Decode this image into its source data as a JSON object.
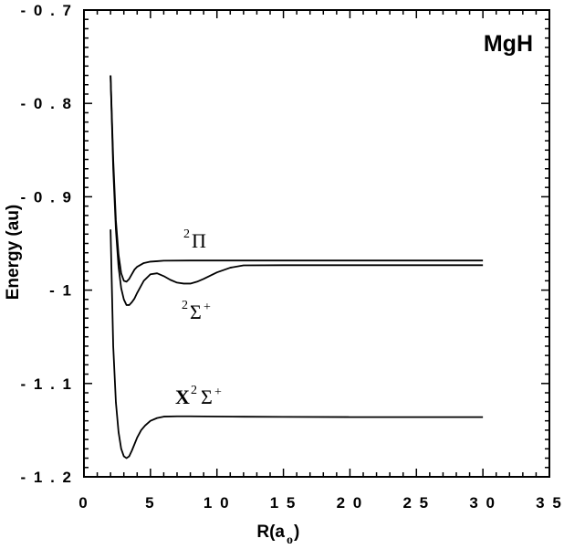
{
  "chart_data": {
    "type": "line",
    "title": "MgH",
    "xlabel": "R(a",
    "xlabel_sub": "o",
    "xlabel_close": ")",
    "ylabel": "Energy  (au)",
    "xlim": [
      0,
      35
    ],
    "ylim": [
      -1.2,
      -0.7
    ],
    "xticks": [
      0,
      5,
      10,
      15,
      20,
      25,
      30,
      35
    ],
    "xtick_labels": [
      "0",
      "5",
      "1 0",
      "1 5",
      "2 0",
      "2 5",
      "3 0",
      "3 5"
    ],
    "yticks": [
      -0.7,
      -0.8,
      -0.9,
      -1.0,
      -1.1,
      -1.2
    ],
    "ytick_labels": [
      "- 0 . 7",
      "- 0 . 8",
      "- 0 . 9",
      "- 1",
      "- 1 . 1",
      "- 1 . 2"
    ],
    "grid": false,
    "series": [
      {
        "name": "X²Σ⁺",
        "x": [
          2.0,
          2.2,
          2.4,
          2.6,
          2.8,
          3.0,
          3.2,
          3.4,
          3.6,
          3.8,
          4.0,
          4.3,
          4.6,
          5.0,
          5.5,
          6.0,
          7.0,
          8.0,
          10.0,
          12.0,
          15.0,
          20.0,
          25.0,
          30.0
        ],
        "y": [
          -0.935,
          -1.06,
          -1.12,
          -1.152,
          -1.17,
          -1.178,
          -1.18,
          -1.178,
          -1.172,
          -1.165,
          -1.158,
          -1.15,
          -1.145,
          -1.14,
          -1.137,
          -1.1355,
          -1.1352,
          -1.1352,
          -1.1354,
          -1.1356,
          -1.1358,
          -1.136,
          -1.136,
          -1.136
        ]
      },
      {
        "name": "²Π",
        "x": [
          2.0,
          2.2,
          2.4,
          2.6,
          2.8,
          3.0,
          3.2,
          3.4,
          3.6,
          3.8,
          4.0,
          4.5,
          5.0,
          5.5,
          6.0,
          8.0,
          10.0,
          15.0,
          20.0,
          25.0,
          30.0
        ],
        "y": [
          -0.77,
          -0.86,
          -0.925,
          -0.962,
          -0.982,
          -0.99,
          -0.991,
          -0.988,
          -0.983,
          -0.978,
          -0.975,
          -0.971,
          -0.9695,
          -0.969,
          -0.9685,
          -0.9683,
          -0.9683,
          -0.9683,
          -0.9683,
          -0.9683,
          -0.9683
        ]
      },
      {
        "name": "²Σ⁺",
        "x": [
          2.0,
          2.2,
          2.4,
          2.6,
          2.8,
          3.0,
          3.2,
          3.4,
          3.6,
          3.8,
          4.0,
          4.5,
          5.0,
          5.5,
          6.0,
          6.5,
          7.0,
          7.5,
          8.0,
          8.5,
          9.0,
          10.0,
          11.0,
          12.0,
          15.0,
          20.0,
          25.0,
          30.0
        ],
        "y": [
          -0.77,
          -0.87,
          -0.935,
          -0.975,
          -0.998,
          -1.01,
          -1.016,
          -1.016,
          -1.013,
          -1.009,
          -1.003,
          -0.99,
          -0.983,
          -0.982,
          -0.985,
          -0.989,
          -0.992,
          -0.993,
          -0.993,
          -0.991,
          -0.988,
          -0.981,
          -0.976,
          -0.9735,
          -0.9733,
          -0.9733,
          -0.9733,
          -0.9733
        ]
      }
    ],
    "annotations": [
      {
        "base": "Π",
        "prefix_sup": "2",
        "suffix_sup": ""
      },
      {
        "base": "Σ",
        "prefix_sup": "2",
        "suffix_sup": "+"
      },
      {
        "base": "X",
        "mid_sup": "2",
        "base2": "Σ",
        "suffix_sup": "+"
      }
    ]
  }
}
